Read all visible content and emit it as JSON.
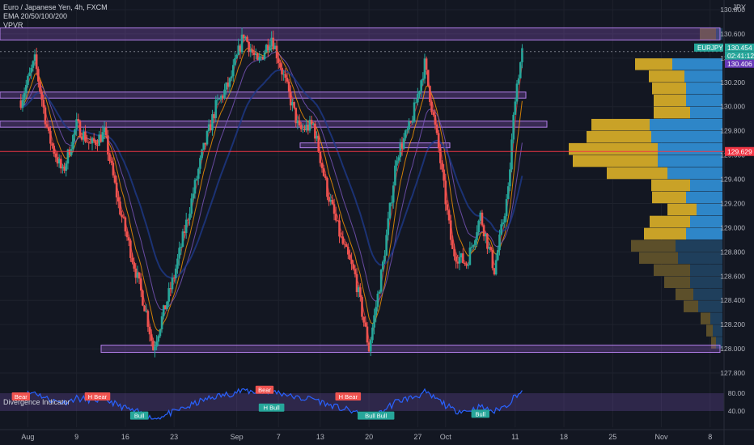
{
  "legend": {
    "symbol": "Euro / Japanese Yen, 4h, FXCM",
    "ema": "EMA 20/50/100/200",
    "vpvr": "VPVR"
  },
  "currency": "JPY",
  "badges": {
    "symbol": "EURJPY",
    "last_price": "130.454",
    "countdown": "02:41:12",
    "ema_price": "130.406",
    "red_line_price": "129.629"
  },
  "rsi_panel": {
    "title": "Divergence Indicator",
    "levels": [
      "80.00",
      "40.00"
    ],
    "labels": [
      {
        "text": "Bear",
        "x": "Aug 1",
        "y": 71,
        "type": "bear"
      },
      {
        "text": "H Bear",
        "x": "Aug 12",
        "y": 71,
        "type": "bear"
      },
      {
        "text": "Bull",
        "x": "Aug 18",
        "y": 28,
        "type": "bull"
      },
      {
        "text": "Bear",
        "x": "Sep 5",
        "y": 86,
        "type": "bear"
      },
      {
        "text": "H Bull",
        "x": "Sep 6",
        "y": 46,
        "type": "bull"
      },
      {
        "text": "H Bear",
        "x": "Sep 17",
        "y": 71,
        "type": "bear"
      },
      {
        "text": "Bull Bull",
        "x": "Sep 21",
        "y": 28,
        "type": "bull"
      },
      {
        "text": "Bull",
        "x": "Oct 6",
        "y": 32,
        "type": "bull"
      }
    ]
  },
  "chart_data": {
    "type": "candlestick",
    "x_ticks": [
      "Aug",
      "9",
      "16",
      "23",
      "Sep",
      "7",
      "13",
      "20",
      "27",
      "Oct",
      "11",
      "18",
      "25",
      "Nov",
      "8"
    ],
    "y_ticks": [
      "130.800",
      "130.600",
      "130.400",
      "130.200",
      "130.000",
      "129.800",
      "129.600",
      "129.400",
      "129.200",
      "129.000",
      "128.800",
      "128.600",
      "128.400",
      "128.200",
      "128.000",
      "127.800"
    ],
    "ylim": [
      127.7,
      130.85
    ],
    "price_path": [
      {
        "x": "Aug 1",
        "y": 130.05
      },
      {
        "x": "Aug 3",
        "y": 130.38
      },
      {
        "x": "Aug 5",
        "y": 129.75
      },
      {
        "x": "Aug 7",
        "y": 129.45
      },
      {
        "x": "Aug 9",
        "y": 129.85
      },
      {
        "x": "Aug 11",
        "y": 129.68
      },
      {
        "x": "Aug 13",
        "y": 129.78
      },
      {
        "x": "Aug 15",
        "y": 129.2
      },
      {
        "x": "Aug 17",
        "y": 128.75
      },
      {
        "x": "Aug 19",
        "y": 128.3
      },
      {
        "x": "Aug 20",
        "y": 128.0
      },
      {
        "x": "Aug 23",
        "y": 128.6
      },
      {
        "x": "Aug 25",
        "y": 129.1
      },
      {
        "x": "Aug 27",
        "y": 129.6
      },
      {
        "x": "Aug 29",
        "y": 130.0
      },
      {
        "x": "Aug 31",
        "y": 130.2
      },
      {
        "x": "Sep 2",
        "y": 130.6
      },
      {
        "x": "Sep 4",
        "y": 130.35
      },
      {
        "x": "Sep 6",
        "y": 130.58
      },
      {
        "x": "Sep 8",
        "y": 130.2
      },
      {
        "x": "Sep 10",
        "y": 129.8
      },
      {
        "x": "Sep 12",
        "y": 129.85
      },
      {
        "x": "Sep 14",
        "y": 129.3
      },
      {
        "x": "Sep 16",
        "y": 128.9
      },
      {
        "x": "Sep 18",
        "y": 128.6
      },
      {
        "x": "Sep 20",
        "y": 128.0
      },
      {
        "x": "Sep 22",
        "y": 128.7
      },
      {
        "x": "Sep 24",
        "y": 129.6
      },
      {
        "x": "Sep 26",
        "y": 129.85
      },
      {
        "x": "Sep 28",
        "y": 130.35
      },
      {
        "x": "Sep 30",
        "y": 129.65
      },
      {
        "x": "Oct 2",
        "y": 128.8
      },
      {
        "x": "Oct 4",
        "y": 128.7
      },
      {
        "x": "Oct 6",
        "y": 129.1
      },
      {
        "x": "Oct 8",
        "y": 128.65
      },
      {
        "x": "Oct 10",
        "y": 129.3
      },
      {
        "x": "Oct 11",
        "y": 130.1
      },
      {
        "x": "Oct 12",
        "y": 130.45
      }
    ],
    "zones": [
      {
        "from": 130.55,
        "to": 130.65
      },
      {
        "from": 130.07,
        "to": 130.12
      },
      {
        "from": 129.83,
        "to": 129.88
      },
      {
        "from": 129.66,
        "to": 129.7
      },
      {
        "from": 127.97,
        "to": 128.03
      }
    ],
    "horizontal_line": 129.629,
    "dashed_line": 130.454,
    "volume_profile": [
      {
        "price": 130.6,
        "up": 20,
        "down": 8
      },
      {
        "price": 130.35,
        "up": 46,
        "down": 62
      },
      {
        "price": 130.25,
        "up": 44,
        "down": 47
      },
      {
        "price": 130.15,
        "up": 42,
        "down": 45
      },
      {
        "price": 130.05,
        "up": 40,
        "down": 45
      },
      {
        "price": 129.95,
        "up": 45,
        "down": 40
      },
      {
        "price": 129.85,
        "up": 72,
        "down": 90
      },
      {
        "price": 129.75,
        "up": 80,
        "down": 88
      },
      {
        "price": 129.65,
        "up": 110,
        "down": 80
      },
      {
        "price": 129.55,
        "up": 105,
        "down": 80
      },
      {
        "price": 129.45,
        "up": 75,
        "down": 68
      },
      {
        "price": 129.35,
        "up": 48,
        "down": 40
      },
      {
        "price": 129.25,
        "up": 42,
        "down": 45
      },
      {
        "price": 129.15,
        "up": 36,
        "down": 32
      },
      {
        "price": 129.05,
        "up": 50,
        "down": 40
      },
      {
        "price": 128.95,
        "up": 52,
        "down": 45
      },
      {
        "price": 128.85,
        "up": 55,
        "down": 58
      },
      {
        "price": 128.75,
        "up": 48,
        "down": 55
      },
      {
        "price": 128.65,
        "up": 45,
        "down": 40
      },
      {
        "price": 128.55,
        "up": 32,
        "down": 40
      },
      {
        "price": 128.45,
        "up": 22,
        "down": 36
      },
      {
        "price": 128.35,
        "up": 18,
        "down": 30
      },
      {
        "price": 128.25,
        "up": 12,
        "down": 15
      },
      {
        "price": 128.15,
        "up": 8,
        "down": 12
      },
      {
        "price": 128.05,
        "up": 6,
        "down": 8
      }
    ]
  }
}
